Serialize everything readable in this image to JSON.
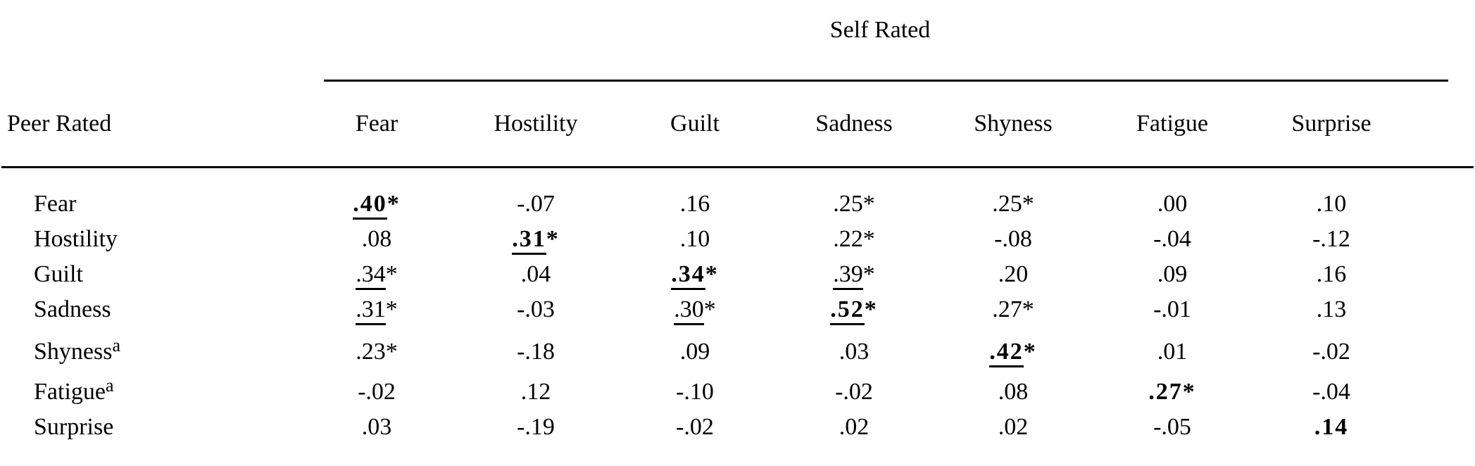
{
  "page": {
    "background": "#ffffff",
    "text_color": "#000000"
  },
  "table": {
    "column_group_title": "Self Rated",
    "row_group_title": "Peer Rated",
    "columns": [
      "Fear",
      "Hostility",
      "Guilt",
      "Sadness",
      "Shyness",
      "Fatigue",
      "Surprise"
    ],
    "rows": [
      {
        "label": "Fear",
        "superscript": "",
        "cells": [
          {
            "v": ".40",
            "s": "*",
            "b": true,
            "u": true
          },
          {
            "v": "-.07"
          },
          {
            "v": ".16"
          },
          {
            "v": ".25",
            "s": "*"
          },
          {
            "v": ".25",
            "s": "*"
          },
          {
            "v": ".00"
          },
          {
            "v": ".10"
          }
        ]
      },
      {
        "label": "Hostility",
        "superscript": "",
        "cells": [
          {
            "v": ".08"
          },
          {
            "v": ".31",
            "s": "*",
            "b": true,
            "u": true
          },
          {
            "v": ".10"
          },
          {
            "v": ".22",
            "s": "*"
          },
          {
            "v": "-.08"
          },
          {
            "v": "-.04"
          },
          {
            "v": "-.12"
          }
        ]
      },
      {
        "label": "Guilt",
        "superscript": "",
        "cells": [
          {
            "v": ".34",
            "s": "*",
            "u": true
          },
          {
            "v": ".04"
          },
          {
            "v": ".34",
            "s": "*",
            "b": true,
            "u": true
          },
          {
            "v": ".39",
            "s": "*",
            "u": true
          },
          {
            "v": ".20"
          },
          {
            "v": ".09"
          },
          {
            "v": ".16"
          }
        ]
      },
      {
        "label": "Sadness",
        "superscript": "",
        "cells": [
          {
            "v": ".31",
            "s": "*",
            "u": true
          },
          {
            "v": "-.03"
          },
          {
            "v": ".30",
            "s": "*",
            "u": true
          },
          {
            "v": ".52",
            "s": "*",
            "b": true,
            "u": true
          },
          {
            "v": ".27",
            "s": "*"
          },
          {
            "v": "-.01"
          },
          {
            "v": ".13"
          }
        ]
      },
      {
        "label": "Shyness",
        "superscript": "a",
        "cells": [
          {
            "v": ".23",
            "s": "*"
          },
          {
            "v": "-.18"
          },
          {
            "v": ".09"
          },
          {
            "v": ".03"
          },
          {
            "v": ".42",
            "s": "*",
            "b": true,
            "u": true
          },
          {
            "v": ".01"
          },
          {
            "v": "-.02"
          }
        ]
      },
      {
        "label": "Fatigue",
        "superscript": "a",
        "cells": [
          {
            "v": "-.02"
          },
          {
            "v": ".12"
          },
          {
            "v": "-.10"
          },
          {
            "v": "-.02"
          },
          {
            "v": ".08"
          },
          {
            "v": ".27",
            "s": "*",
            "b": true
          },
          {
            "v": "-.04"
          }
        ]
      },
      {
        "label": "Surprise",
        "superscript": "",
        "cells": [
          {
            "v": ".03"
          },
          {
            "v": "-.19"
          },
          {
            "v": "-.02"
          },
          {
            "v": ".02"
          },
          {
            "v": ".02"
          },
          {
            "v": "-.05"
          },
          {
            "v": ".14",
            "b": true
          }
        ]
      }
    ]
  }
}
